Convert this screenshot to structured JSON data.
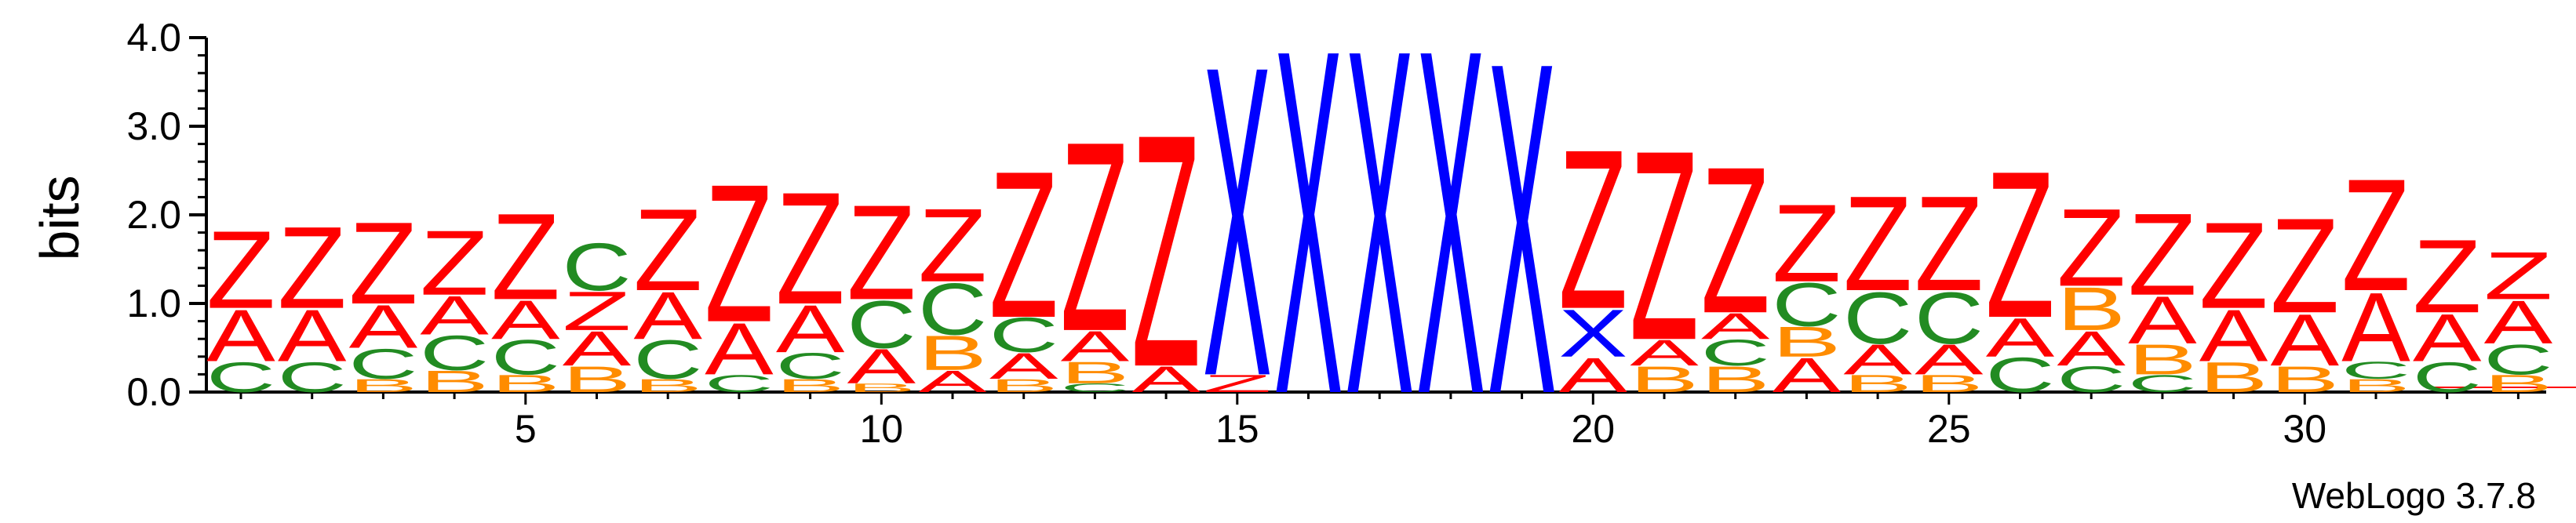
{
  "chart_data": {
    "type": "sequence-logo",
    "ylabel": "bits",
    "ylim": [
      0,
      4.0
    ],
    "y_ticks": [
      "0.0",
      "1.0",
      "2.0",
      "3.0",
      "4.0"
    ],
    "x_ticks": [
      5,
      10,
      15,
      20,
      25,
      30
    ],
    "credit": "WebLogo 3.7.8",
    "colors": {
      "Z": "#ff0000",
      "A": "#ff0000",
      "X": "#0000ff",
      "C": "#228b22",
      "B": "#ff8c00",
      "Q": "#ff0000"
    },
    "positions": [
      {
        "pos": 1,
        "stack": [
          [
            "C",
            0.35
          ],
          [
            "A",
            0.6
          ],
          [
            "Z",
            0.9
          ]
        ]
      },
      {
        "pos": 2,
        "stack": [
          [
            "C",
            0.35
          ],
          [
            "A",
            0.6
          ],
          [
            "Z",
            0.95
          ]
        ]
      },
      {
        "pos": 3,
        "stack": [
          [
            "B",
            0.15
          ],
          [
            "C",
            0.35
          ],
          [
            "A",
            0.5
          ],
          [
            "Z",
            0.95
          ]
        ]
      },
      {
        "pos": 4,
        "stack": [
          [
            "B",
            0.25
          ],
          [
            "C",
            0.4
          ],
          [
            "A",
            0.45
          ],
          [
            "Z",
            0.75
          ]
        ]
      },
      {
        "pos": 5,
        "stack": [
          [
            "B",
            0.2
          ],
          [
            "C",
            0.4
          ],
          [
            "A",
            0.45
          ],
          [
            "Z",
            1.0
          ]
        ]
      },
      {
        "pos": 6,
        "stack": [
          [
            "B",
            0.3
          ],
          [
            "A",
            0.4
          ],
          [
            "Z",
            0.45
          ],
          [
            "C",
            0.55
          ]
        ]
      },
      {
        "pos": 7,
        "stack": [
          [
            "B",
            0.15
          ],
          [
            "C",
            0.45
          ],
          [
            "A",
            0.55
          ],
          [
            "Z",
            0.95
          ]
        ]
      },
      {
        "pos": 8,
        "stack": [
          [
            "C",
            0.2
          ],
          [
            "A",
            0.6
          ],
          [
            "Z",
            1.6
          ]
        ]
      },
      {
        "pos": 9,
        "stack": [
          [
            "B",
            0.15
          ],
          [
            "C",
            0.3
          ],
          [
            "A",
            0.55
          ],
          [
            "Z",
            1.3
          ]
        ]
      },
      {
        "pos": 10,
        "stack": [
          [
            "B",
            0.1
          ],
          [
            "A",
            0.4
          ],
          [
            "C",
            0.55
          ],
          [
            "Z",
            1.1
          ]
        ]
      },
      {
        "pos": 11,
        "stack": [
          [
            "A",
            0.25
          ],
          [
            "B",
            0.4
          ],
          [
            "C",
            0.6
          ],
          [
            "Z",
            0.85
          ]
        ]
      },
      {
        "pos": 12,
        "stack": [
          [
            "B",
            0.15
          ],
          [
            "A",
            0.3
          ],
          [
            "C",
            0.4
          ],
          [
            "Z",
            1.7
          ]
        ]
      },
      {
        "pos": 13,
        "stack": [
          [
            "C",
            0.1
          ],
          [
            "B",
            0.25
          ],
          [
            "A",
            0.35
          ],
          [
            "Z",
            2.2
          ]
        ]
      },
      {
        "pos": 14,
        "stack": [
          [
            "A",
            0.3
          ],
          [
            "Z",
            2.7
          ]
        ]
      },
      {
        "pos": 15,
        "stack": [
          [
            "Z",
            0.2
          ],
          [
            "X",
            3.6
          ]
        ]
      },
      {
        "pos": 16,
        "stack": [
          [
            "X",
            4.0
          ]
        ]
      },
      {
        "pos": 17,
        "stack": [
          [
            "X",
            4.0
          ]
        ]
      },
      {
        "pos": 18,
        "stack": [
          [
            "X",
            4.0
          ]
        ]
      },
      {
        "pos": 19,
        "stack": [
          [
            "X",
            3.85
          ]
        ]
      },
      {
        "pos": 20,
        "stack": [
          [
            "A",
            0.4
          ],
          [
            "X",
            0.55
          ],
          [
            "Z",
            1.85
          ]
        ]
      },
      {
        "pos": 21,
        "stack": [
          [
            "B",
            0.3
          ],
          [
            "A",
            0.3
          ],
          [
            "Z",
            2.2
          ]
        ]
      },
      {
        "pos": 22,
        "stack": [
          [
            "B",
            0.3
          ],
          [
            "C",
            0.3
          ],
          [
            "A",
            0.3
          ],
          [
            "Z",
            1.7
          ]
        ]
      },
      {
        "pos": 23,
        "stack": [
          [
            "A",
            0.4
          ],
          [
            "B",
            0.35
          ],
          [
            "C",
            0.5
          ],
          [
            "Z",
            0.9
          ]
        ]
      },
      {
        "pos": 24,
        "stack": [
          [
            "B",
            0.2
          ],
          [
            "A",
            0.35
          ],
          [
            "C",
            0.6
          ],
          [
            "Z",
            1.1
          ]
        ]
      },
      {
        "pos": 25,
        "stack": [
          [
            "B",
            0.2
          ],
          [
            "A",
            0.35
          ],
          [
            "C",
            0.6
          ],
          [
            "Z",
            1.1
          ]
        ]
      },
      {
        "pos": 26,
        "stack": [
          [
            "C",
            0.4
          ],
          [
            "A",
            0.45
          ],
          [
            "Z",
            1.7
          ]
        ]
      },
      {
        "pos": 27,
        "stack": [
          [
            "C",
            0.3
          ],
          [
            "A",
            0.4
          ],
          [
            "B",
            0.5
          ],
          [
            "Z",
            0.9
          ]
        ]
      },
      {
        "pos": 28,
        "stack": [
          [
            "C",
            0.2
          ],
          [
            "B",
            0.35
          ],
          [
            "A",
            0.55
          ],
          [
            "Z",
            0.95
          ]
        ]
      },
      {
        "pos": 29,
        "stack": [
          [
            "B",
            0.35
          ],
          [
            "A",
            0.6
          ],
          [
            "Z",
            1.0
          ]
        ]
      },
      {
        "pos": 30,
        "stack": [
          [
            "B",
            0.3
          ],
          [
            "A",
            0.6
          ],
          [
            "Z",
            1.1
          ]
        ]
      },
      {
        "pos": 31,
        "stack": [
          [
            "B",
            0.15
          ],
          [
            "C",
            0.2
          ],
          [
            "A",
            0.8
          ],
          [
            "Z",
            1.3
          ]
        ]
      },
      {
        "pos": 32,
        "stack": [
          [
            "C",
            0.35
          ],
          [
            "A",
            0.55
          ],
          [
            "Z",
            0.85
          ]
        ]
      },
      {
        "pos": 33,
        "stack": [
          [
            "B",
            0.2
          ],
          [
            "C",
            0.35
          ],
          [
            "A",
            0.5
          ],
          [
            "Z",
            0.55
          ]
        ]
      }
    ]
  }
}
